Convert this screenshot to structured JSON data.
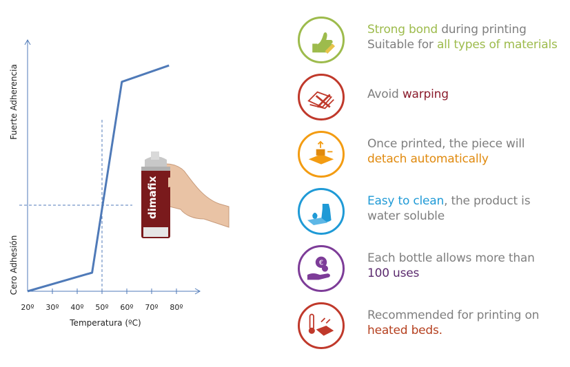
{
  "colors": {
    "green": "#9dbb4c",
    "red": "#c0392b",
    "orange": "#f39c12",
    "blue": "#1f9ad6",
    "purple": "#7d3c98",
    "dark_red": "#c0392b",
    "line": "#4f7ab8",
    "grid": "#4f7ab8",
    "text_gray": "#7f7f7f"
  },
  "chart_data": {
    "type": "line",
    "xlabel": "Temperatura (ºC)",
    "y_top_label": "Fuerte Adherencia",
    "y_bottom_label": "Cero Adhesión",
    "x_tick_labels": [
      "20º",
      "30º",
      "40º",
      "50º",
      "60º",
      "70º",
      "80º"
    ],
    "x_ticks": [
      20,
      30,
      40,
      50,
      60,
      70,
      80
    ],
    "xlim": [
      20,
      84
    ],
    "ylim": [
      0,
      100
    ],
    "series": [
      {
        "x": [
          20,
          46,
          58,
          77
        ],
        "y": [
          0,
          8,
          90,
          97
        ]
      }
    ],
    "reference_lines": {
      "x": 50,
      "y": 37
    },
    "product_image": {
      "brand": "dimafix"
    }
  },
  "features": [
    {
      "icon": "thumbs-up-bond-icon",
      "color": "#9dbb4c",
      "lines": [
        [
          {
            "t": "Strong bond",
            "c": "#9dbb4c"
          },
          {
            "t": " during printing",
            "c": "#7f7f7f"
          }
        ],
        [
          {
            "t": "Suitable for ",
            "c": "#7f7f7f"
          },
          {
            "t": "all types of materials",
            "c": "#9dbb4c"
          }
        ]
      ]
    },
    {
      "icon": "no-warping-icon",
      "color": "#c0392b",
      "lines": [
        [
          {
            "t": "Avoid ",
            "c": "#7f7f7f"
          },
          {
            "t": "warping",
            "c": "#8b1c2c"
          }
        ]
      ]
    },
    {
      "icon": "auto-detach-icon",
      "color": "#f39c12",
      "lines": [
        [
          {
            "t": "Once printed, the piece will",
            "c": "#7f7f7f"
          }
        ],
        [
          {
            "t": "detach automatically",
            "c": "#e08a0e"
          }
        ]
      ]
    },
    {
      "icon": "water-clean-icon",
      "color": "#1f9ad6",
      "lines": [
        [
          {
            "t": "Easy to clean",
            "c": "#1f9ad6"
          },
          {
            "t": ", the product is",
            "c": "#7f7f7f"
          }
        ],
        [
          {
            "t": "water soluble",
            "c": "#7f7f7f"
          }
        ]
      ]
    },
    {
      "icon": "euro-hand-icon",
      "color": "#7d3c98",
      "lines": [
        [
          {
            "t": "Each bottle allows more than",
            "c": "#7f7f7f"
          }
        ],
        [
          {
            "t": "100 uses",
            "c": "#5b2a6e"
          }
        ]
      ]
    },
    {
      "icon": "heated-bed-icon",
      "color": "#c0392b",
      "lines": [
        [
          {
            "t": "Recommended for printing on",
            "c": "#7f7f7f"
          }
        ],
        [
          {
            "t": "heated beds.",
            "c": "#b5401f"
          }
        ]
      ]
    }
  ]
}
